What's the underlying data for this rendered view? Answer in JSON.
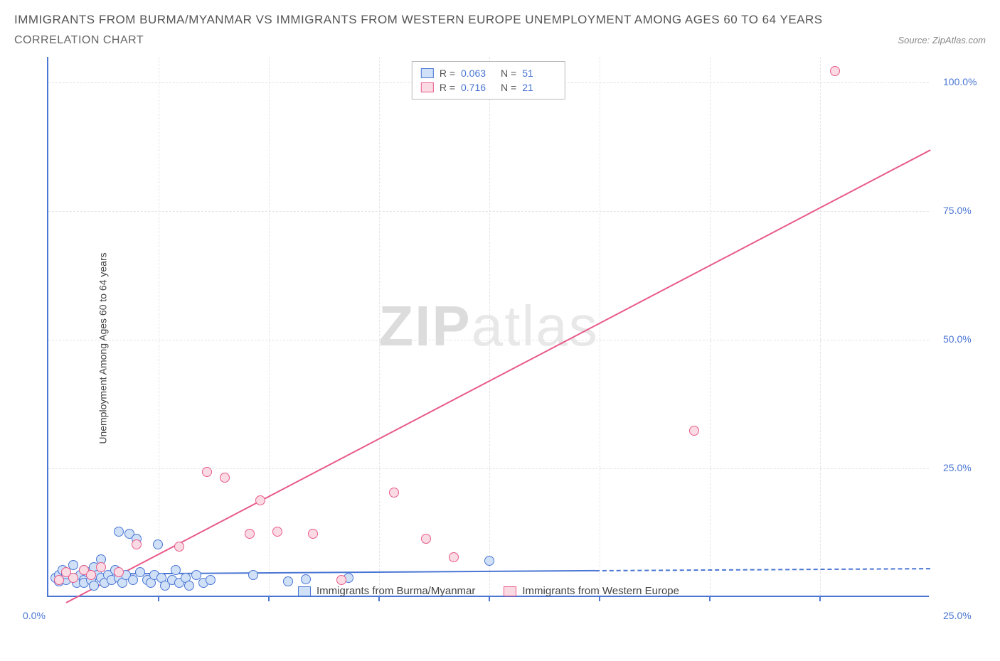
{
  "title": "IMMIGRANTS FROM BURMA/MYANMAR VS IMMIGRANTS FROM WESTERN EUROPE UNEMPLOYMENT AMONG AGES 60 TO 64 YEARS",
  "subtitle": "CORRELATION CHART",
  "source_label": "Source: ZipAtlas.com",
  "y_axis_label": "Unemployment Among Ages 60 to 64 years",
  "watermark": {
    "bold": "ZIP",
    "light": "atlas"
  },
  "chart": {
    "type": "scatter",
    "xlim": [
      0,
      25
    ],
    "ylim": [
      0,
      105
    ],
    "x_ticks": [
      0,
      25
    ],
    "x_tick_labels": [
      "0.0%",
      "25.0%"
    ],
    "x_minor_ticks": [
      3.125,
      6.25,
      9.375,
      12.5,
      15.625,
      18.75,
      21.875
    ],
    "y_ticks": [
      25,
      50,
      75,
      100
    ],
    "y_tick_labels": [
      "25.0%",
      "50.0%",
      "75.0%",
      "100.0%"
    ],
    "grid_color": "#e4e4e4",
    "axis_color": "#4a76d4",
    "label_color": "#4a76d4",
    "background_color": "#ffffff",
    "marker_radius": 7,
    "marker_border_width": 1.5,
    "label_fontsize": 14
  },
  "series": [
    {
      "name": "Immigrants from Burma/Myanmar",
      "fill": "#cfe0f7",
      "stroke": "#4a76d4",
      "R": "0.063",
      "N": "51",
      "trend": {
        "x1": 0.2,
        "y1": 4.5,
        "x2": 15.5,
        "y2": 5.2,
        "solid_until_x": 15.5,
        "dash_to_x": 25,
        "dash_to_y": 5.6
      },
      "points": [
        [
          0.2,
          3.5
        ],
        [
          0.3,
          4.0
        ],
        [
          0.3,
          2.8
        ],
        [
          0.4,
          5.0
        ],
        [
          0.5,
          3.0
        ],
        [
          0.5,
          4.2
        ],
        [
          0.7,
          3.5
        ],
        [
          0.7,
          6.0
        ],
        [
          0.8,
          2.5
        ],
        [
          0.9,
          4.0
        ],
        [
          1.0,
          5.0
        ],
        [
          1.0,
          3.0
        ],
        [
          1.0,
          2.5
        ],
        [
          1.1,
          4.5
        ],
        [
          1.2,
          3.0
        ],
        [
          1.3,
          5.5
        ],
        [
          1.3,
          2.0
        ],
        [
          1.4,
          4.0
        ],
        [
          1.5,
          7.0
        ],
        [
          1.5,
          3.5
        ],
        [
          1.6,
          2.5
        ],
        [
          1.7,
          4.0
        ],
        [
          1.8,
          3.0
        ],
        [
          1.9,
          5.0
        ],
        [
          2.0,
          3.5
        ],
        [
          2.0,
          12.5
        ],
        [
          2.1,
          2.5
        ],
        [
          2.2,
          4.0
        ],
        [
          2.3,
          12.0
        ],
        [
          2.4,
          3.0
        ],
        [
          2.5,
          11.0
        ],
        [
          2.6,
          4.5
        ],
        [
          2.8,
          3.0
        ],
        [
          2.9,
          2.5
        ],
        [
          3.0,
          4.0
        ],
        [
          3.1,
          10.0
        ],
        [
          3.2,
          3.5
        ],
        [
          3.3,
          2.0
        ],
        [
          3.5,
          3.0
        ],
        [
          3.6,
          5.0
        ],
        [
          3.7,
          2.5
        ],
        [
          3.9,
          3.5
        ],
        [
          4.0,
          2.0
        ],
        [
          4.2,
          4.0
        ],
        [
          4.4,
          2.5
        ],
        [
          4.6,
          3.0
        ],
        [
          5.8,
          4.0
        ],
        [
          6.8,
          2.8
        ],
        [
          7.3,
          3.2
        ],
        [
          8.5,
          3.5
        ],
        [
          12.5,
          6.8
        ]
      ]
    },
    {
      "name": "Immigrants from Western Europe",
      "fill": "#fadbe3",
      "stroke": "#e85a8a",
      "R": "0.716",
      "N": "21",
      "trend": {
        "x1": 0.5,
        "y1": -1,
        "x2": 25,
        "y2": 87
      },
      "points": [
        [
          0.3,
          3.0
        ],
        [
          0.5,
          4.5
        ],
        [
          0.7,
          3.5
        ],
        [
          1.0,
          5.0
        ],
        [
          1.2,
          4.0
        ],
        [
          1.5,
          5.5
        ],
        [
          2.0,
          4.5
        ],
        [
          2.5,
          10.0
        ],
        [
          3.7,
          9.5
        ],
        [
          4.5,
          24.0
        ],
        [
          5.0,
          23.0
        ],
        [
          5.7,
          12.0
        ],
        [
          6.0,
          18.5
        ],
        [
          6.5,
          12.5
        ],
        [
          7.5,
          12.0
        ],
        [
          8.3,
          3.0
        ],
        [
          9.8,
          20.0
        ],
        [
          10.7,
          11.0
        ],
        [
          11.5,
          7.5
        ],
        [
          18.3,
          32.0
        ],
        [
          22.3,
          102.0
        ]
      ]
    }
  ],
  "legend_top": {
    "rows": [
      {
        "swatch": 0,
        "r_label": "R =",
        "r_val": "0.063",
        "n_label": "N =",
        "n_val": "51"
      },
      {
        "swatch": 1,
        "r_label": "R =",
        "r_val": "0.716",
        "n_label": "N =",
        "n_val": "21"
      }
    ]
  },
  "legend_bottom": [
    {
      "swatch": 0,
      "label": "Immigrants from Burma/Myanmar"
    },
    {
      "swatch": 1,
      "label": "Immigrants from Western Europe"
    }
  ]
}
